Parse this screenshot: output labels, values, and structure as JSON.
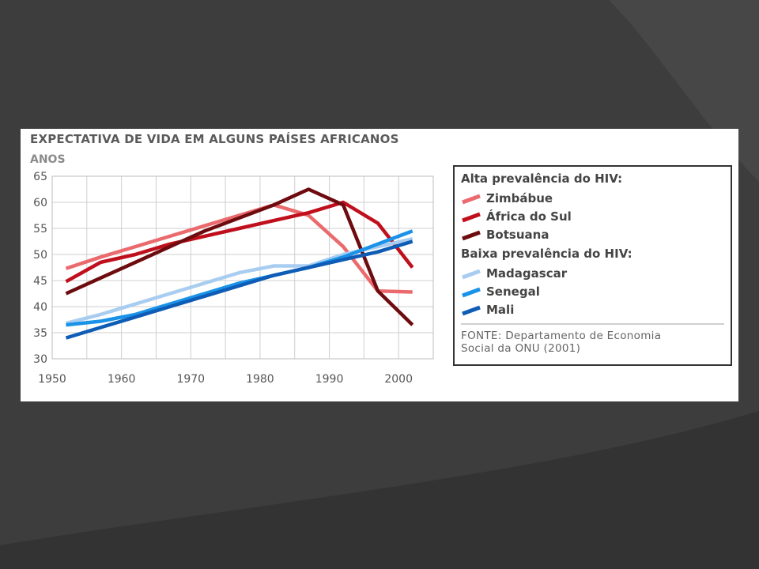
{
  "chart_data": {
    "type": "line",
    "title": "EXPECTATIVA DE VIDA EM ALGUNS PAÍSES AFRICANOS",
    "ylabel": "ANOS",
    "xlabel": "",
    "xlim": [
      1950,
      2005
    ],
    "ylim": [
      30,
      65
    ],
    "x_ticks": [
      "1950",
      "1960",
      "1970",
      "1980",
      "1990",
      "2000"
    ],
    "y_ticks": [
      "30",
      "35",
      "40",
      "45",
      "50",
      "55",
      "60",
      "65"
    ],
    "grid": true,
    "legend_position": "right",
    "groups": [
      {
        "heading": "Alta prevalência do HIV:",
        "series_idx": [
          0,
          1,
          2
        ]
      },
      {
        "heading": "Baixa prevalência do HIV:",
        "series_idx": [
          3,
          4,
          5
        ]
      }
    ],
    "source": [
      "FONTE: Departamento de Economia",
      "Social da ONU (2001)"
    ],
    "series": [
      {
        "name": "Zimbábue",
        "color": "#ea6a6e",
        "points": [
          [
            1952,
            47.3
          ],
          [
            1957,
            49.5
          ],
          [
            1962,
            51.5
          ],
          [
            1967,
            53.5
          ],
          [
            1972,
            55.5
          ],
          [
            1977,
            57.5
          ],
          [
            1982,
            59.5
          ],
          [
            1987,
            57.5
          ],
          [
            1992,
            51.5
          ],
          [
            1997,
            43.0
          ],
          [
            2002,
            42.8
          ]
        ]
      },
      {
        "name": "África do Sul",
        "color": "#c00f1c",
        "points": [
          [
            1952,
            44.8
          ],
          [
            1957,
            48.5
          ],
          [
            1962,
            50.0
          ],
          [
            1967,
            52.0
          ],
          [
            1972,
            53.5
          ],
          [
            1977,
            55.0
          ],
          [
            1982,
            56.5
          ],
          [
            1987,
            58.0
          ],
          [
            1992,
            60.0
          ],
          [
            1997,
            56.0
          ],
          [
            2002,
            47.5
          ]
        ]
      },
      {
        "name": "Botsuana",
        "color": "#6d0b0f",
        "points": [
          [
            1952,
            42.5
          ],
          [
            1957,
            45.5
          ],
          [
            1962,
            48.5
          ],
          [
            1967,
            51.5
          ],
          [
            1972,
            54.5
          ],
          [
            1977,
            57.0
          ],
          [
            1982,
            59.5
          ],
          [
            1987,
            62.5
          ],
          [
            1992,
            59.5
          ],
          [
            1997,
            43.0
          ],
          [
            2002,
            36.5
          ]
        ]
      },
      {
        "name": "Madagascar",
        "color": "#a9cdf0",
        "points": [
          [
            1952,
            36.8
          ],
          [
            1957,
            38.5
          ],
          [
            1962,
            40.5
          ],
          [
            1967,
            42.5
          ],
          [
            1972,
            44.5
          ],
          [
            1977,
            46.5
          ],
          [
            1982,
            47.8
          ],
          [
            1987,
            47.8
          ],
          [
            1992,
            50.0
          ],
          [
            1997,
            51.5
          ],
          [
            2002,
            53.0
          ]
        ]
      },
      {
        "name": "Senegal",
        "color": "#1a92e8",
        "points": [
          [
            1952,
            36.5
          ],
          [
            1957,
            37.2
          ],
          [
            1962,
            38.5
          ],
          [
            1967,
            40.5
          ],
          [
            1972,
            42.5
          ],
          [
            1977,
            44.5
          ],
          [
            1982,
            46.0
          ],
          [
            1987,
            47.5
          ],
          [
            1992,
            49.5
          ],
          [
            1997,
            52.0
          ],
          [
            2002,
            54.5
          ]
        ]
      },
      {
        "name": "Mali",
        "color": "#0e5cb5",
        "points": [
          [
            1952,
            34.0
          ],
          [
            1957,
            36.0
          ],
          [
            1962,
            38.0
          ],
          [
            1967,
            40.0
          ],
          [
            1972,
            42.0
          ],
          [
            1977,
            44.0
          ],
          [
            1982,
            46.0
          ],
          [
            1987,
            47.5
          ],
          [
            1992,
            49.0
          ],
          [
            1997,
            50.5
          ],
          [
            2002,
            52.5
          ]
        ]
      }
    ]
  }
}
